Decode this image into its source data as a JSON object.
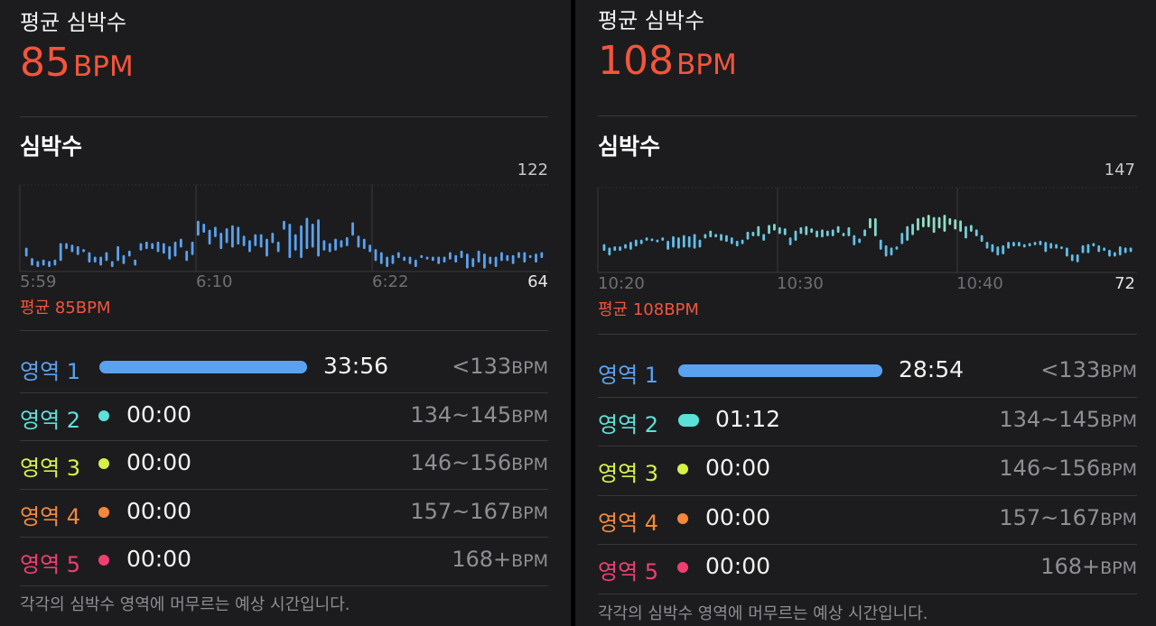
{
  "colors": {
    "zone1": "#5aa2f0",
    "zone2": "#5ce1d8",
    "zone3": "#d5f249",
    "zone4": "#f4883a",
    "zone5": "#ef3f72",
    "accent": "#f5543b"
  },
  "panels": [
    {
      "avg_label": "평균 심박수",
      "avg_value": "85",
      "avg_unit": "BPM",
      "chart_title": "심박수",
      "chart_max": "122",
      "chart_min": "64",
      "time_labels": [
        "5:59",
        "6:10",
        "6:22"
      ],
      "chart_avg": "평균 85BPM",
      "zones": [
        {
          "name": "영역 1",
          "time": "33:56",
          "range": "<133",
          "unit": "BPM",
          "fraction": 1.0
        },
        {
          "name": "영역 2",
          "time": "00:00",
          "range": "134~145",
          "unit": "BPM",
          "fraction": 0
        },
        {
          "name": "영역 3",
          "time": "00:00",
          "range": "146~156",
          "unit": "BPM",
          "fraction": 0
        },
        {
          "name": "영역 4",
          "time": "00:00",
          "range": "157~167",
          "unit": "BPM",
          "fraction": 0
        },
        {
          "name": "영역 5",
          "time": "00:00",
          "range": "168+",
          "unit": "BPM",
          "fraction": 0
        }
      ],
      "footnote": "각각의 심박수 영역에 머무르는 예상 시간입니다."
    },
    {
      "avg_label": "평균 심박수",
      "avg_value": "108",
      "avg_unit": "BPM",
      "chart_title": "심박수",
      "chart_max": "147",
      "chart_min": "72",
      "time_labels": [
        "10:20",
        "10:30",
        "10:40"
      ],
      "chart_avg": "평균 108BPM",
      "zones": [
        {
          "name": "영역 1",
          "time": "28:54",
          "range": "<133",
          "unit": "BPM",
          "fraction": 0.962
        },
        {
          "name": "영역 2",
          "time": "01:12",
          "range": "134~145",
          "unit": "BPM",
          "fraction": 0.038
        },
        {
          "name": "영역 3",
          "time": "00:00",
          "range": "146~156",
          "unit": "BPM",
          "fraction": 0
        },
        {
          "name": "영역 4",
          "time": "00:00",
          "range": "157~167",
          "unit": "BPM",
          "fraction": 0
        },
        {
          "name": "영역 5",
          "time": "00:00",
          "range": "168+",
          "unit": "BPM",
          "fraction": 0
        }
      ],
      "footnote": "각각의 심박수 영역에 머무르는 예상 시간입니다."
    }
  ],
  "chart_data": [
    {
      "type": "bar",
      "ylim": [
        64,
        122
      ],
      "xlim": [
        "5:59",
        "6:33"
      ],
      "x_ticks": [
        "5:59",
        "6:10",
        "6:22"
      ],
      "series": [
        {
          "name": "",
          "ranges": [
            [
              74,
              80
            ],
            [
              68,
              73
            ],
            [
              67,
              71
            ],
            [
              68,
              72
            ],
            [
              67,
              71
            ],
            [
              68,
              72
            ],
            [
              71,
              83
            ],
            [
              79,
              83
            ],
            [
              77,
              82
            ],
            [
              75,
              81
            ],
            [
              77,
              79
            ],
            [
              70,
              77
            ],
            [
              70,
              74
            ],
            [
              68,
              74
            ],
            [
              71,
              77
            ],
            [
              67,
              71
            ],
            [
              71,
              81
            ],
            [
              69,
              75
            ],
            [
              74,
              78
            ],
            [
              68,
              72
            ],
            [
              78,
              83
            ],
            [
              79,
              84
            ],
            [
              79,
              83
            ],
            [
              77,
              84
            ],
            [
              76,
              83
            ],
            [
              72,
              81
            ],
            [
              74,
              84
            ],
            [
              80,
              86
            ],
            [
              71,
              78
            ],
            [
              75,
              84
            ],
            [
              88,
              98
            ],
            [
              90,
              96
            ],
            [
              82,
              92
            ],
            [
              87,
              94
            ],
            [
              79,
              90
            ],
            [
              83,
              93
            ],
            [
              80,
              95
            ],
            [
              82,
              94
            ],
            [
              81,
              88
            ],
            [
              77,
              85
            ],
            [
              81,
              89
            ],
            [
              80,
              89
            ],
            [
              74,
              86
            ],
            [
              83,
              90
            ],
            [
              77,
              84
            ],
            [
              92,
              98
            ],
            [
              73,
              96
            ],
            [
              78,
              89
            ],
            [
              73,
              95
            ],
            [
              79,
              100
            ],
            [
              80,
              96
            ],
            [
              74,
              99
            ],
            [
              78,
              85
            ],
            [
              77,
              83
            ],
            [
              78,
              86
            ],
            [
              80,
              85
            ],
            [
              81,
              87
            ],
            [
              88,
              97
            ],
            [
              80,
              88
            ],
            [
              79,
              86
            ],
            [
              77,
              82
            ],
            [
              71,
              79
            ],
            [
              69,
              77
            ],
            [
              67,
              74
            ],
            [
              69,
              75
            ],
            [
              73,
              77
            ],
            [
              71,
              74
            ],
            [
              69,
              74
            ],
            [
              67,
              72
            ],
            [
              73,
              75
            ],
            [
              72,
              74
            ],
            [
              71,
              74
            ],
            [
              69,
              74
            ],
            [
              70,
              74
            ],
            [
              72,
              77
            ],
            [
              70,
              75
            ],
            [
              73,
              78
            ],
            [
              66,
              76
            ],
            [
              67,
              73
            ],
            [
              70,
              78
            ],
            [
              66,
              76
            ],
            [
              69,
              74
            ],
            [
              67,
              74
            ],
            [
              71,
              77
            ],
            [
              71,
              75
            ],
            [
              69,
              75
            ],
            [
              73,
              77
            ],
            [
              70,
              77
            ],
            [
              73,
              75
            ],
            [
              70,
              76
            ],
            [
              73,
              77
            ]
          ]
        }
      ]
    },
    {
      "type": "bar",
      "ylim": [
        72,
        147
      ],
      "xlim": [
        "10:20",
        "10:50"
      ],
      "x_ticks": [
        "10:20",
        "10:30",
        "10:40"
      ],
      "series": [
        {
          "name": "",
          "ranges": [
            [
              91,
              97
            ],
            [
              87,
              94
            ],
            [
              91,
              95
            ],
            [
              91,
              95
            ],
            [
              93,
              97
            ],
            [
              92,
              99
            ],
            [
              95,
              101
            ],
            [
              97,
              101
            ],
            [
              100,
              103
            ],
            [
              100,
              102
            ],
            [
              99,
              101
            ],
            [
              100,
              103
            ],
            [
              92,
              100
            ],
            [
              94,
              104
            ],
            [
              93,
              103
            ],
            [
              94,
              105
            ],
            [
              94,
              104
            ],
            [
              93,
              106
            ],
            [
              94,
              101
            ],
            [
              102,
              106
            ],
            [
              103,
              109
            ],
            [
              103,
              106
            ],
            [
              100,
              106
            ],
            [
              99,
              105
            ],
            [
              97,
              103
            ],
            [
              95,
              100
            ],
            [
              97,
              101
            ],
            [
              101,
              108
            ],
            [
              104,
              108
            ],
            [
              104,
              113
            ],
            [
              100,
              106
            ],
            [
              106,
              114
            ],
            [
              109,
              115
            ],
            [
              106,
              112
            ],
            [
              105,
              111
            ],
            [
              96,
              103
            ],
            [
              100,
              109
            ],
            [
              106,
              112
            ],
            [
              105,
              113
            ],
            [
              107,
              111
            ],
            [
              103,
              109
            ],
            [
              103,
              110
            ],
            [
              104,
              109
            ],
            [
              104,
              110
            ],
            [
              107,
              113
            ],
            [
              104,
              107
            ],
            [
              104,
              112
            ],
            [
              96,
              105
            ],
            [
              98,
              102
            ],
            [
              104,
              110
            ],
            [
              111,
              120
            ],
            [
              104,
              120
            ],
            [
              92,
              101
            ],
            [
              86,
              96
            ],
            [
              87,
              94
            ],
            [
              92,
              95
            ],
            [
              97,
              107
            ],
            [
              100,
              113
            ],
            [
              105,
              115
            ],
            [
              109,
              120
            ],
            [
              112,
              121
            ],
            [
              112,
              123
            ],
            [
              107,
              121
            ],
            [
              111,
              121
            ],
            [
              108,
              123
            ],
            [
              114,
              120
            ],
            [
              110,
              119
            ],
            [
              108,
              118
            ],
            [
              102,
              113
            ],
            [
              108,
              114
            ],
            [
              104,
              110
            ],
            [
              99,
              105
            ],
            [
              93,
              99
            ],
            [
              90,
              97
            ],
            [
              87,
              95
            ],
            [
              88,
              96
            ],
            [
              93,
              99
            ],
            [
              95,
              99
            ],
            [
              95,
              99
            ],
            [
              94,
              97
            ],
            [
              95,
              98
            ],
            [
              96,
              99
            ],
            [
              96,
              100
            ],
            [
              90,
              99
            ],
            [
              93,
              98
            ],
            [
              93,
              97
            ],
            [
              93,
              95
            ],
            [
              86,
              94
            ],
            [
              82,
              88
            ],
            [
              81,
              88
            ],
            [
              89,
              96
            ],
            [
              89,
              97
            ],
            [
              95,
              98
            ],
            [
              90,
              96
            ],
            [
              91,
              94
            ],
            [
              86,
              92
            ],
            [
              86,
              90
            ],
            [
              87,
              95
            ],
            [
              89,
              94
            ],
            [
              90,
              94
            ]
          ]
        }
      ]
    }
  ]
}
